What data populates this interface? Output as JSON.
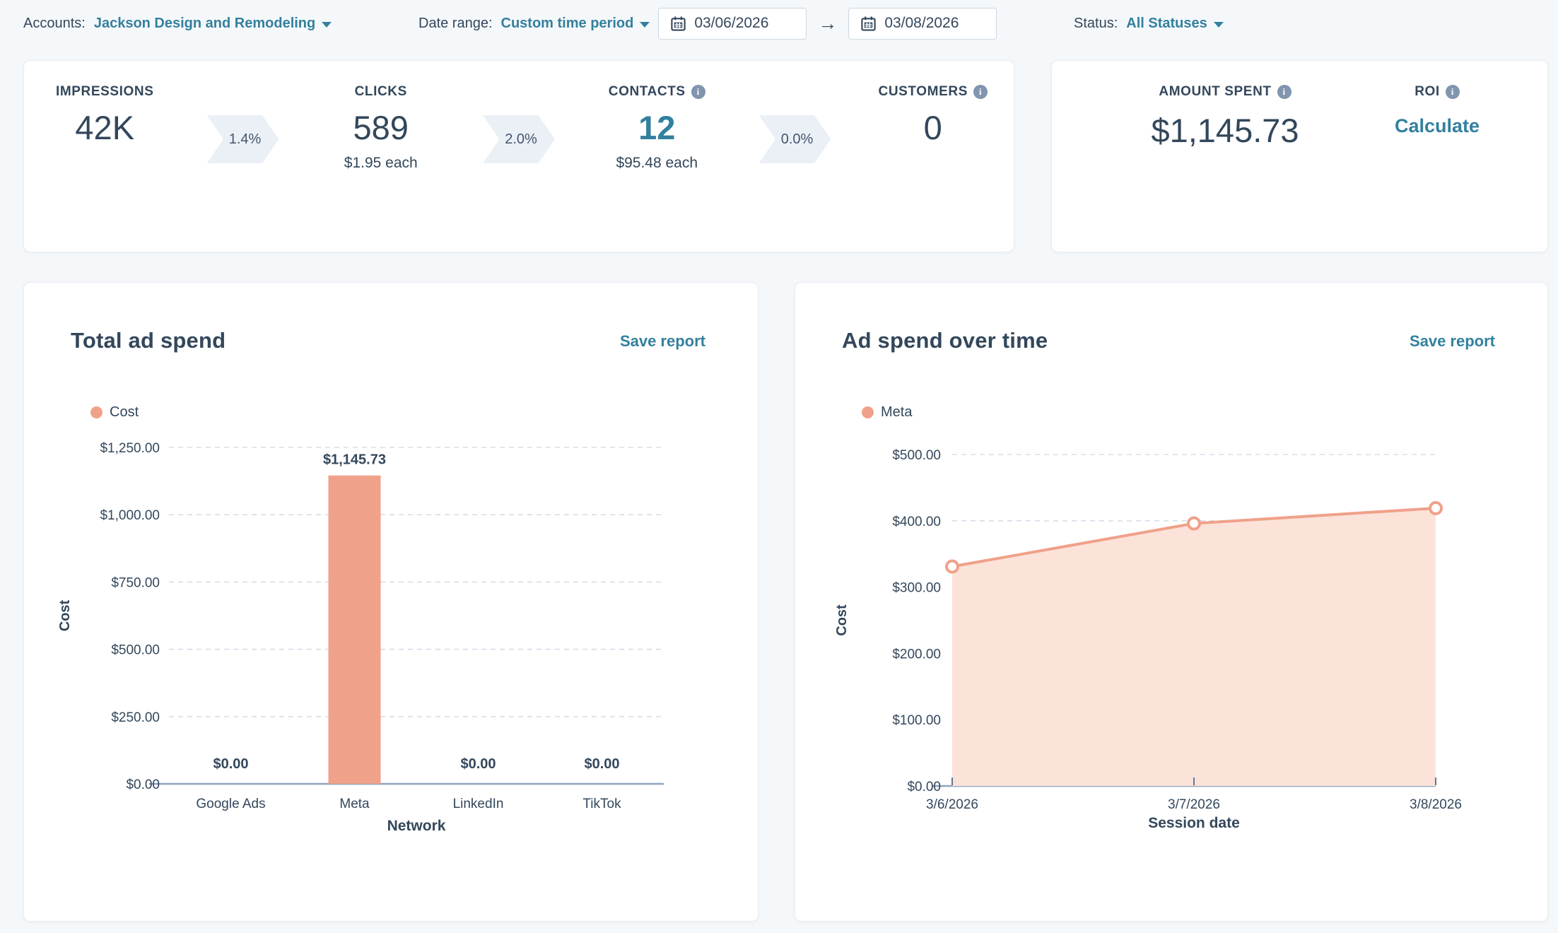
{
  "filters": {
    "accounts_label": "Accounts:",
    "accounts_value": "Jackson Design and Remodeling",
    "date_range_label": "Date range:",
    "date_range_value": "Custom time period",
    "start_date": "03/06/2026",
    "end_date": "03/08/2026",
    "status_label": "Status:",
    "status_value": "All Statuses"
  },
  "funnel": {
    "metrics": [
      {
        "label": "IMPRESSIONS",
        "value": "42K",
        "sub": "",
        "has_info": false,
        "highlight": false
      },
      {
        "label": "CLICKS",
        "value": "589",
        "sub": "$1.95 each",
        "has_info": false,
        "highlight": false
      },
      {
        "label": "CONTACTS",
        "value": "12",
        "sub": "$95.48 each",
        "has_info": true,
        "highlight": true
      },
      {
        "label": "CUSTOMERS",
        "value": "0",
        "sub": "",
        "has_info": true,
        "highlight": false
      }
    ],
    "conversions": [
      "1.4%",
      "2.0%",
      "0.0%"
    ]
  },
  "spend_card": {
    "amount_label": "AMOUNT SPENT",
    "amount_value": "$1,145.73",
    "roi_label": "ROI",
    "roi_action": "Calculate"
  },
  "icons": {
    "caret_down": "caret-down-icon",
    "calendar": "calendar-icon",
    "arrow_right_glyph": "→",
    "info_glyph": "i"
  },
  "colors": {
    "dark_navy": "#33475b",
    "teal_link": "#33809e",
    "salmon": "#f0a189",
    "salmon_fill": "#fce3da",
    "chevron_bg": "#eaf0f6",
    "grid_dash": "#d5dee8",
    "axis_line": "#8ea4bd",
    "page_bg": "#f5f8fa"
  },
  "chart_data": [
    {
      "type": "bar",
      "title": "Total ad spend",
      "save_label": "Save report",
      "legend": "Cost",
      "categories": [
        "Google Ads",
        "Meta",
        "LinkedIn",
        "TikTok"
      ],
      "values": [
        0,
        1145.73,
        0,
        0
      ],
      "data_labels": [
        "$0.00",
        "$1,145.73",
        "$0.00",
        "$0.00"
      ],
      "xlabel": "Network",
      "ylabel": "Cost",
      "ylim": [
        0,
        1250
      ],
      "yticks": [
        "$0.00",
        "$250.00",
        "$500.00",
        "$750.00",
        "$1,000.00",
        "$1,250.00"
      ],
      "grid": "horizontal-dashed",
      "legend_position": "top-left",
      "bar_color": "#f0a189"
    },
    {
      "type": "area",
      "title": "Ad spend over time",
      "save_label": "Save report",
      "legend": "Meta",
      "x": [
        "3/6/2026",
        "3/7/2026",
        "3/8/2026"
      ],
      "series": [
        {
          "name": "Meta",
          "values": [
            331,
            396,
            419
          ]
        }
      ],
      "xlabel": "Session date",
      "ylabel": "Cost",
      "ylim": [
        0,
        500
      ],
      "yticks": [
        "$0.00",
        "$100.00",
        "$200.00",
        "$300.00",
        "$400.00",
        "$500.00"
      ],
      "grid": "horizontal-dashed",
      "legend_position": "top-left",
      "line_color": "#f0a189",
      "fill_color": "#fce3da",
      "marker": "open-circle"
    }
  ]
}
